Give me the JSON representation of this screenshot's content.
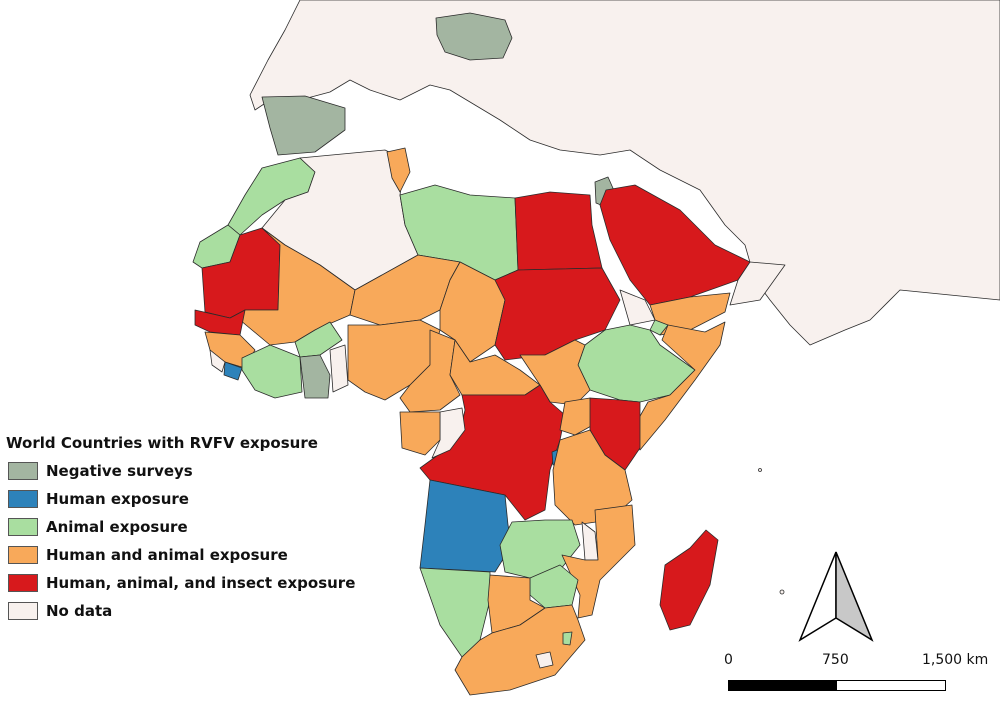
{
  "legend": {
    "title": "World Countries with RVFV exposure",
    "items": [
      {
        "label": "Negative surveys",
        "color": "#a3b5a1"
      },
      {
        "label": "Human exposure",
        "color": "#2d82ba"
      },
      {
        "label": "Animal exposure",
        "color": "#a9dea0"
      },
      {
        "label": "Human and animal exposure",
        "color": "#f8a95a"
      },
      {
        "label": "Human, animal, and insect exposure",
        "color": "#d7191c"
      },
      {
        "label": "No data",
        "color": "#f8f1ee"
      }
    ]
  },
  "scale": {
    "tick_0": "0",
    "tick_mid": "750",
    "tick_max": "1,500 km"
  },
  "colors": {
    "outside": "#f8f1ee",
    "water": "#ffffff",
    "border": "#232323"
  }
}
